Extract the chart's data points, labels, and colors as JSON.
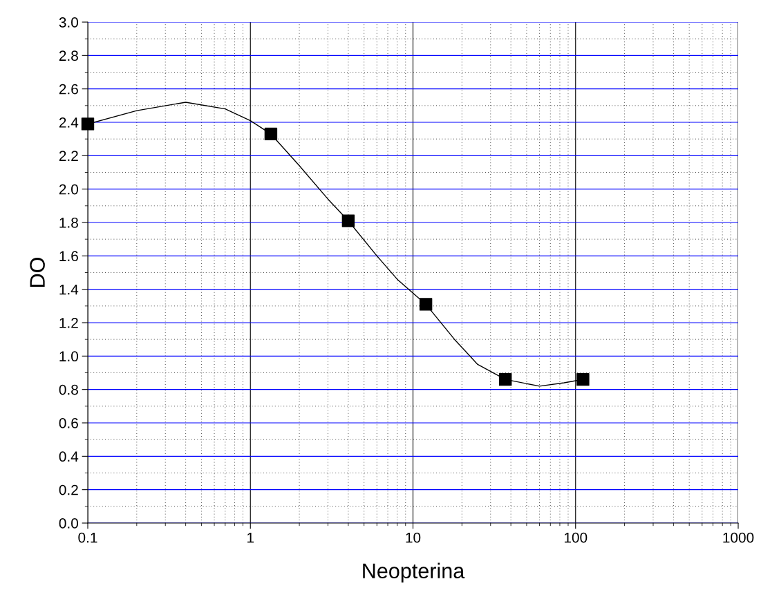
{
  "chart_data": {
    "type": "scatter",
    "xlabel": "Neopterina",
    "ylabel": "DO",
    "log": "x",
    "grid": true,
    "marker": "square",
    "xlim": [
      0.1,
      1000
    ],
    "xticks": [
      0.1,
      1,
      10,
      100,
      1000
    ],
    "ylim": [
      0,
      3
    ],
    "yticks": [
      {
        "value": 0,
        "label": "0.0"
      },
      0.2,
      0.4,
      0.6,
      0.8,
      {
        "value": 1,
        "label": "1.0"
      },
      1.2,
      1.4,
      1.6,
      1.8,
      {
        "value": 2,
        "label": "2.0"
      },
      2.2,
      2.4,
      2.6,
      2.8,
      {
        "value": 3,
        "label": "3.0"
      }
    ],
    "series": [
      {
        "type": "line",
        "marker": "none",
        "color": "#000000",
        "x": [
          0.1,
          0.2,
          0.4,
          0.7,
          1.0,
          1.337,
          2,
          3,
          4,
          6,
          8,
          12,
          18,
          25,
          37,
          60,
          85,
          111
        ],
        "values": [
          2.39,
          2.47,
          2.52,
          2.48,
          2.41,
          2.33,
          2.14,
          1.94,
          1.81,
          1.6,
          1.46,
          1.31,
          1.1,
          0.95,
          0.86,
          0.82,
          0.84,
          0.86
        ]
      },
      {
        "color": "#000000",
        "x": [
          0.1,
          1.337,
          4.0,
          12.0,
          37,
          111
        ],
        "values": [
          2.39,
          2.33,
          1.81,
          1.31,
          0.86,
          0.86
        ]
      }
    ]
  }
}
